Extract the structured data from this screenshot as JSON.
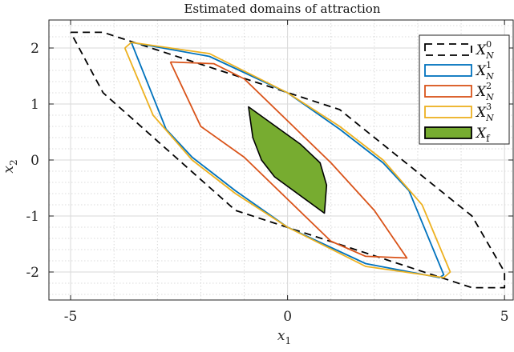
{
  "chart_data": {
    "type": "line",
    "title": "Estimated domains of attraction",
    "xlabel": "x_1",
    "ylabel": "x_2",
    "xlim": [
      -5.5,
      5.2
    ],
    "ylim": [
      -2.5,
      2.5
    ],
    "xticks": [
      -5,
      0,
      5
    ],
    "xtick_labels": [
      "-5",
      "0",
      "5"
    ],
    "yticks": [
      -2,
      -1,
      0,
      1,
      2
    ],
    "ytick_labels": [
      "-2",
      "-1",
      "0",
      "1",
      "2"
    ],
    "grid": true,
    "minor_grid": true,
    "legend_position": "top-right",
    "series": [
      {
        "name": "X_N^0",
        "legend_main": "X",
        "legend_sub": "N",
        "legend_sup": "0",
        "color": "#000000",
        "style": "dashed",
        "fill": false,
        "x": [
          -5.0,
          -4.25,
          1.2,
          4.25,
          5.0,
          5.0,
          4.25,
          -1.2,
          -4.25,
          -5.0,
          -5.0
        ],
        "y": [
          2.28,
          2.28,
          0.9,
          -1.0,
          -2.0,
          -2.28,
          -2.28,
          -0.9,
          1.2,
          2.28,
          2.28
        ]
      },
      {
        "name": "X_N^1",
        "legend_main": "X",
        "legend_sub": "N",
        "legend_sup": "1",
        "color": "#0072BD",
        "style": "solid",
        "fill": false,
        "x": [
          -3.6,
          -1.8,
          0.0,
          1.2,
          2.2,
          2.8,
          3.6,
          3.5,
          1.8,
          0.0,
          -1.2,
          -2.2,
          -2.8,
          -3.6
        ],
        "y": [
          2.1,
          1.85,
          1.2,
          0.55,
          -0.05,
          -0.55,
          -2.05,
          -2.1,
          -1.85,
          -1.2,
          -0.55,
          0.05,
          0.55,
          2.1
        ]
      },
      {
        "name": "X_N^2",
        "legend_main": "X",
        "legend_sub": "N",
        "legend_sup": "2",
        "color": "#D95319",
        "style": "solid",
        "fill": false,
        "x": [
          -2.7,
          -1.7,
          -1.0,
          0.0,
          1.0,
          2.0,
          2.75,
          1.8,
          1.0,
          0.0,
          -1.0,
          -2.0,
          -2.7
        ],
        "y": [
          1.75,
          1.72,
          1.45,
          0.7,
          -0.05,
          -0.9,
          -1.75,
          -1.72,
          -1.45,
          -0.7,
          0.05,
          0.6,
          1.75
        ]
      },
      {
        "name": "X_N^3",
        "legend_main": "X",
        "legend_sub": "N",
        "legend_sup": "3",
        "color": "#EDB120",
        "style": "solid",
        "fill": false,
        "x": [
          -3.75,
          -3.6,
          -1.8,
          0.0,
          1.2,
          2.2,
          3.1,
          3.75,
          3.6,
          1.8,
          0.0,
          -1.2,
          -2.2,
          -3.1,
          -3.75
        ],
        "y": [
          2.0,
          2.1,
          1.9,
          1.2,
          0.6,
          0.0,
          -0.8,
          -2.0,
          -2.1,
          -1.9,
          -1.2,
          -0.6,
          0.0,
          0.8,
          2.0
        ]
      },
      {
        "name": "X_f",
        "legend_main": "X",
        "legend_sub": "f",
        "legend_sup": "",
        "color": "#000000",
        "fill_color": "#77AC30",
        "style": "solid",
        "fill": true,
        "x": [
          -0.9,
          0.3,
          0.75,
          0.9,
          0.85,
          -0.3,
          -0.6,
          -0.8,
          -0.9
        ],
        "y": [
          0.95,
          0.28,
          -0.05,
          -0.45,
          -0.95,
          -0.3,
          0.0,
          0.4,
          0.95
        ]
      }
    ]
  }
}
